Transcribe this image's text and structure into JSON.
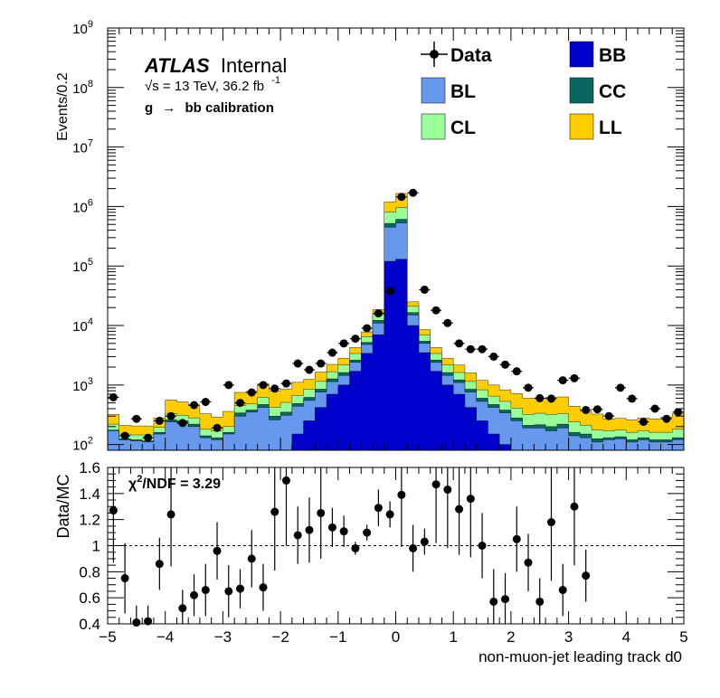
{
  "chart_data": [
    {
      "type": "stacked-histogram",
      "ylabel": "Events/0.2",
      "log_y": true,
      "ylim": [
        80,
        1000000000
      ],
      "xlim": [
        -5,
        5
      ],
      "bin_width": 0.2,
      "y_ticks": [
        {
          "value": 100,
          "base": "10",
          "exp": "2"
        },
        {
          "value": 1000,
          "base": "10",
          "exp": "3"
        },
        {
          "value": 10000,
          "base": "10",
          "exp": "4"
        },
        {
          "value": 100000,
          "base": "10",
          "exp": "5"
        },
        {
          "value": 1000000,
          "base": "10",
          "exp": "6"
        },
        {
          "value": 10000000,
          "base": "10",
          "exp": "7"
        },
        {
          "value": 100000000,
          "base": "10",
          "exp": "8"
        },
        {
          "value": 1000000000,
          "base": "10",
          "exp": "9"
        }
      ],
      "atlas_label": {
        "bold": "ATLAS",
        "normal": "Internal"
      },
      "energy_label": {
        "sqrt": "√s",
        "text": " = 13 TeV, 36.2 fb",
        "sup": "-1"
      },
      "selection_label": {
        "g": "g",
        "arrow": "→",
        "rest": "bb calibration"
      },
      "legend": [
        {
          "label": "Data",
          "kind": "data",
          "color": "#000000"
        },
        {
          "label": "BB",
          "kind": "box",
          "color": "#0000cc"
        },
        {
          "label": "BL",
          "kind": "box",
          "color": "#6699ee"
        },
        {
          "label": "CC",
          "kind": "box",
          "color": "#0a6660"
        },
        {
          "label": "CL",
          "kind": "box",
          "color": "#99ff99"
        },
        {
          "label": "LL",
          "kind": "box",
          "color": "#ffcc00"
        }
      ],
      "stack_order": [
        "BB",
        "BL",
        "CC",
        "CL",
        "LL"
      ],
      "bins": [
        {
          "x": -4.9,
          "BB": 0,
          "BL": 170,
          "CC": 5,
          "CL": 45,
          "LL": 100,
          "data": 620
        },
        {
          "x": -4.7,
          "BB": 0,
          "BL": 120,
          "CC": 5,
          "CL": 25,
          "LL": 60,
          "data": 140
        },
        {
          "x": -4.5,
          "BB": 0,
          "BL": 115,
          "CC": 5,
          "CL": 25,
          "LL": 60,
          "data": 270
        },
        {
          "x": -4.3,
          "BB": 0,
          "BL": 110,
          "CC": 5,
          "CL": 30,
          "LL": 60,
          "data": 130
        },
        {
          "x": -4.1,
          "BB": 0,
          "BL": 150,
          "CC": 10,
          "CL": 35,
          "LL": 85,
          "data": 250
        },
        {
          "x": -3.9,
          "BB": 0,
          "BL": 240,
          "CC": 20,
          "CL": 70,
          "LL": 230,
          "data": 300
        },
        {
          "x": -3.7,
          "BB": 0,
          "BL": 230,
          "CC": 20,
          "CL": 60,
          "LL": 210,
          "data": 230
        },
        {
          "x": -3.5,
          "BB": 0,
          "BL": 200,
          "CC": 20,
          "CL": 60,
          "LL": 170,
          "data": 460
        },
        {
          "x": -3.3,
          "BB": 0,
          "BL": 130,
          "CC": 10,
          "CL": 40,
          "LL": 150,
          "data": 520
        },
        {
          "x": -3.1,
          "BB": 0,
          "BL": 120,
          "CC": 10,
          "CL": 40,
          "LL": 120,
          "data": 190
        },
        {
          "x": -2.9,
          "BB": 0,
          "BL": 150,
          "CC": 10,
          "CL": 40,
          "LL": 160,
          "data": 1000
        },
        {
          "x": -2.7,
          "BB": 0,
          "BL": 300,
          "CC": 40,
          "CL": 110,
          "LL": 300,
          "data": 500
        },
        {
          "x": -2.5,
          "BB": 0,
          "BL": 350,
          "CC": 30,
          "CL": 100,
          "LL": 300,
          "data": 750
        },
        {
          "x": -2.3,
          "BB": 0,
          "BL": 420,
          "CC": 50,
          "CL": 150,
          "LL": 430,
          "data": 1000
        },
        {
          "x": -2.1,
          "BB": 0,
          "BL": 260,
          "CC": 40,
          "CL": 120,
          "LL": 380,
          "data": 870
        },
        {
          "x": -1.9,
          "BB": 0,
          "BL": 310,
          "CC": 40,
          "CL": 160,
          "LL": 340,
          "data": 1060
        },
        {
          "x": -1.7,
          "BB": 150,
          "BL": 290,
          "CC": 50,
          "CL": 180,
          "LL": 440,
          "data": 2300
        },
        {
          "x": -1.5,
          "BB": 250,
          "BL": 300,
          "CC": 70,
          "CL": 230,
          "LL": 400,
          "data": 1800
        },
        {
          "x": -1.3,
          "BB": 420,
          "BL": 340,
          "CC": 90,
          "CL": 300,
          "LL": 500,
          "data": 2300
        },
        {
          "x": -1.1,
          "BB": 700,
          "BL": 440,
          "CC": 130,
          "CL": 400,
          "LL": 550,
          "data": 3500
        },
        {
          "x": -0.9,
          "BB": 1000,
          "BL": 450,
          "CC": 170,
          "CL": 550,
          "LL": 650,
          "data": 5000
        },
        {
          "x": -0.7,
          "BB": 1700,
          "BL": 700,
          "CC": 230,
          "CL": 750,
          "LL": 900,
          "data": 6000
        },
        {
          "x": -0.5,
          "BB": 3400,
          "BL": 1400,
          "CC": 400,
          "CL": 1300,
          "LL": 1300,
          "data": 9000
        },
        {
          "x": -0.3,
          "BB": 7000,
          "BL": 4000,
          "CC": 1200,
          "CL": 3500,
          "LL": 2800,
          "data": 16000
        },
        {
          "x": -0.1,
          "BB": 120000,
          "BL": 330000,
          "CC": 70000,
          "CL": 280000,
          "LL": 400000,
          "data": 38000
        },
        {
          "x": 0.1,
          "BB": 130000,
          "BL": 400000,
          "CC": 80000,
          "CL": 350000,
          "LL": 700000,
          "data": 1450000
        },
        {
          "x": 0.3,
          "BB": 10000,
          "BL": 5000,
          "CC": 1500,
          "CL": 4500,
          "LL": 4000,
          "data": 1700000
        },
        {
          "x": 0.5,
          "BB": 3500,
          "BL": 1500,
          "CC": 450,
          "CL": 1500,
          "LL": 1600,
          "data": 40000
        },
        {
          "x": 0.7,
          "BB": 1700,
          "BL": 700,
          "CC": 230,
          "CL": 750,
          "LL": 900,
          "data": 18000
        },
        {
          "x": 0.9,
          "BB": 1000,
          "BL": 450,
          "CC": 170,
          "CL": 550,
          "LL": 650,
          "data": 11000
        },
        {
          "x": 1.1,
          "BB": 700,
          "BL": 400,
          "CC": 120,
          "CL": 400,
          "LL": 550,
          "data": 5000
        },
        {
          "x": 1.3,
          "BB": 420,
          "BL": 340,
          "CC": 90,
          "CL": 300,
          "LL": 450,
          "data": 4000
        },
        {
          "x": 1.5,
          "BB": 250,
          "BL": 280,
          "CC": 70,
          "CL": 230,
          "LL": 370,
          "data": 4000
        },
        {
          "x": 1.7,
          "BB": 150,
          "BL": 270,
          "CC": 50,
          "CL": 180,
          "LL": 350,
          "data": 3000
        },
        {
          "x": 1.9,
          "BB": 100,
          "BL": 240,
          "CC": 40,
          "CL": 150,
          "LL": 300,
          "data": 2200
        },
        {
          "x": 2.1,
          "BB": 60,
          "BL": 190,
          "CC": 30,
          "CL": 130,
          "LL": 310,
          "data": 1700
        },
        {
          "x": 2.3,
          "BB": 0,
          "BL": 190,
          "CC": 20,
          "CL": 110,
          "LL": 280,
          "data": 900
        },
        {
          "x": 2.5,
          "BB": 0,
          "BL": 190,
          "CC": 25,
          "CL": 120,
          "LL": 260,
          "data": 600
        },
        {
          "x": 2.7,
          "BB": 0,
          "BL": 170,
          "CC": 30,
          "CL": 120,
          "LL": 300,
          "data": 590
        },
        {
          "x": 2.9,
          "BB": 0,
          "BL": 190,
          "CC": 30,
          "CL": 110,
          "LL": 300,
          "data": 1200
        },
        {
          "x": 3.1,
          "BB": 0,
          "BL": 140,
          "CC": 20,
          "CL": 80,
          "LL": 200,
          "data": 1300
        },
        {
          "x": 3.3,
          "BB": 0,
          "BL": 130,
          "CC": 20,
          "CL": 60,
          "LL": 150,
          "data": 380
        },
        {
          "x": 3.5,
          "BB": 0,
          "BL": 110,
          "CC": 15,
          "CL": 50,
          "LL": 150,
          "data": 390
        },
        {
          "x": 3.7,
          "BB": 0,
          "BL": 120,
          "CC": 10,
          "CL": 40,
          "LL": 100,
          "data": 300
        },
        {
          "x": 3.9,
          "BB": 0,
          "BL": 125,
          "CC": 10,
          "CL": 40,
          "LL": 100,
          "data": 900
        },
        {
          "x": 4.1,
          "BB": 0,
          "BL": 110,
          "CC": 10,
          "CL": 40,
          "LL": 100,
          "data": 590
        },
        {
          "x": 4.3,
          "BB": 0,
          "BL": 120,
          "CC": 10,
          "CL": 40,
          "LL": 110,
          "data": 240
        },
        {
          "x": 4.5,
          "BB": 0,
          "BL": 110,
          "CC": 10,
          "CL": 40,
          "LL": 110,
          "data": 400
        },
        {
          "x": 4.7,
          "BB": 0,
          "BL": 110,
          "CC": 10,
          "CL": 40,
          "LL": 130,
          "data": 270
        },
        {
          "x": 4.9,
          "BB": 0,
          "BL": 120,
          "CC": 10,
          "CL": 50,
          "LL": 150,
          "data": 350
        }
      ]
    },
    {
      "type": "scatter",
      "ylabel": "Data/MC",
      "xlabel": "non-muon-jet leading track d0",
      "xlim": [
        -5,
        5
      ],
      "ylim": [
        0.4,
        1.6
      ],
      "reference_line": 1,
      "annotation": {
        "chi": "χ",
        "sup": "2",
        "rest": "/NDF = 3.29"
      },
      "x_ticks": [
        "−5",
        "−4",
        "−3",
        "−2",
        "−1",
        "0",
        "1",
        "2",
        "3",
        "4",
        "5"
      ],
      "y_ticks": [
        "0.4",
        "0.6",
        "0.8",
        "1",
        "1.2",
        "1.4",
        "1.6"
      ],
      "points": [
        {
          "x": -4.9,
          "y": 1.27,
          "err": 0.4
        },
        {
          "x": -4.7,
          "y": 0.75,
          "err": 0.27
        },
        {
          "x": -4.5,
          "y": 0.41,
          "err": 0.13
        },
        {
          "x": -4.3,
          "y": 0.42,
          "err": 0.12
        },
        {
          "x": -4.1,
          "y": 0.86,
          "err": 0.2
        },
        {
          "x": -3.9,
          "y": 1.24,
          "err": 0.4
        },
        {
          "x": -3.7,
          "y": 0.52,
          "err": 0.14
        },
        {
          "x": -3.5,
          "y": 0.62,
          "err": 0.16
        },
        {
          "x": -3.3,
          "y": 0.66,
          "err": 0.2
        },
        {
          "x": -3.1,
          "y": 0.96,
          "err": 0.22
        },
        {
          "x": -2.9,
          "y": 0.65,
          "err": 0.2
        },
        {
          "x": -2.7,
          "y": 0.67,
          "err": 0.15
        },
        {
          "x": -2.5,
          "y": 0.9,
          "err": 0.22
        },
        {
          "x": -2.3,
          "y": 0.68,
          "err": 0.18
        },
        {
          "x": -2.1,
          "y": 1.26,
          "err": 0.45
        },
        {
          "x": -1.9,
          "y": 1.5,
          "err": 0.5
        },
        {
          "x": -1.7,
          "y": 1.08,
          "err": 0.22
        },
        {
          "x": -1.5,
          "y": 1.12,
          "err": 0.25
        },
        {
          "x": -1.3,
          "y": 1.25,
          "err": 0.35
        },
        {
          "x": -1.1,
          "y": 1.14,
          "err": 0.15
        },
        {
          "x": -0.9,
          "y": 1.11,
          "err": 0.12
        },
        {
          "x": -0.7,
          "y": 0.98,
          "err": 0.05
        },
        {
          "x": -0.5,
          "y": 1.1,
          "err": 0.06
        },
        {
          "x": -0.3,
          "y": 1.29,
          "err": 0.14
        },
        {
          "x": -0.1,
          "y": 1.24,
          "err": 0.1
        },
        {
          "x": 0.1,
          "y": 1.39,
          "err": 0.4
        },
        {
          "x": 0.3,
          "y": 0.98,
          "err": 0.18
        },
        {
          "x": 0.5,
          "y": 1.03,
          "err": 0.1
        },
        {
          "x": 0.7,
          "y": 1.47,
          "err": 0.45
        },
        {
          "x": 0.9,
          "y": 1.43,
          "err": 0.45
        },
        {
          "x": 1.1,
          "y": 1.28,
          "err": 0.35
        },
        {
          "x": 1.3,
          "y": 1.36,
          "err": 0.45
        },
        {
          "x": 1.5,
          "y": 1.0,
          "err": 0.25
        },
        {
          "x": 1.7,
          "y": 0.57,
          "err": 0.25
        },
        {
          "x": 1.9,
          "y": 0.59,
          "err": 0.2
        },
        {
          "x": 2.1,
          "y": 1.05,
          "err": 0.25
        },
        {
          "x": 2.3,
          "y": 0.87,
          "err": 0.22
        },
        {
          "x": 2.5,
          "y": 0.57,
          "err": 0.18
        },
        {
          "x": 2.7,
          "y": 1.18,
          "err": 0.45
        },
        {
          "x": 2.9,
          "y": 0.66,
          "err": 0.2
        },
        {
          "x": 3.1,
          "y": 1.3,
          "err": 0.45
        },
        {
          "x": 3.3,
          "y": 0.77,
          "err": 0.2
        }
      ]
    }
  ]
}
